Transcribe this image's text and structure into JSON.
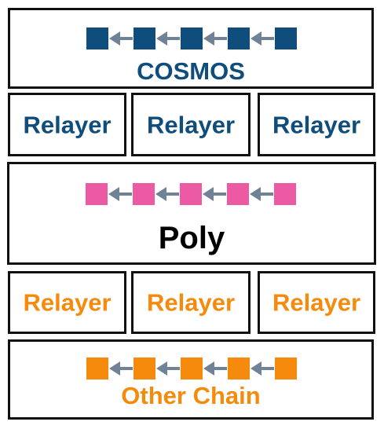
{
  "colors": {
    "border": "#111111",
    "arrow": "#6f8296",
    "cosmos": "#0f4d7c",
    "poly_block": "#ec5aa3",
    "poly_text": "#000000",
    "other": "#f68a0c"
  },
  "layers": {
    "cosmos": {
      "label": "COSMOS",
      "block_count": 5
    },
    "relayers_top": {
      "labels": [
        "Relayer",
        "Relayer",
        "Relayer"
      ]
    },
    "poly": {
      "label": "Poly",
      "block_count": 5
    },
    "relayers_bottom": {
      "labels": [
        "Relayer",
        "Relayer",
        "Relayer"
      ]
    },
    "other": {
      "label": "Other Chain",
      "block_count": 5
    }
  }
}
